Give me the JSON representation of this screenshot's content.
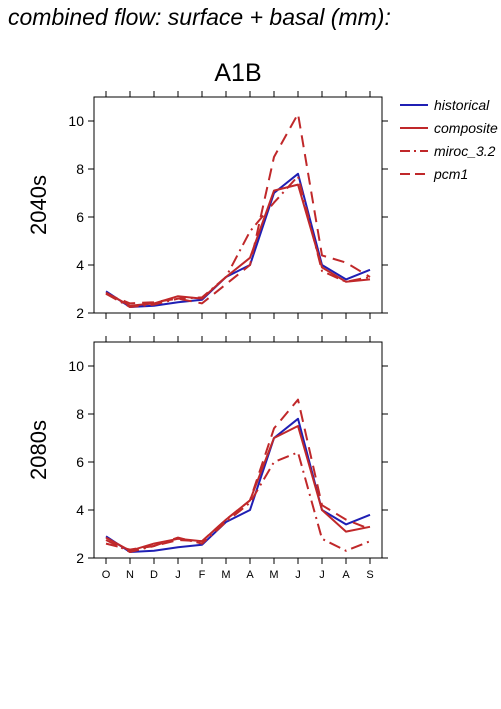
{
  "page": {
    "title": "combined flow: surface + basal (mm):"
  },
  "legend": [
    {
      "label": "historical",
      "color": "#1f1fb4",
      "dash": "solid"
    },
    {
      "label": "composite",
      "color": "#c0282a",
      "dash": "solid"
    },
    {
      "label": "miroc_3.2",
      "color": "#c0282a",
      "dash": "dashdot"
    },
    {
      "label": "pcm1",
      "color": "#c0282a",
      "dash": "dashed"
    }
  ],
  "chart_data": [
    {
      "type": "line",
      "title": "A1B",
      "ylabel": "2040s",
      "categories": [
        "O",
        "N",
        "D",
        "J",
        "F",
        "M",
        "A",
        "M",
        "J",
        "J",
        "A",
        "S"
      ],
      "ylim": [
        2,
        11
      ],
      "yticks": [
        2,
        4,
        6,
        8,
        10
      ],
      "series": [
        {
          "name": "historical",
          "values": [
            2.9,
            2.25,
            2.3,
            2.45,
            2.55,
            3.5,
            4.0,
            7.0,
            7.8,
            4.0,
            3.4,
            3.8
          ]
        },
        {
          "name": "composite",
          "values": [
            2.85,
            2.3,
            2.4,
            2.7,
            2.6,
            3.5,
            4.3,
            7.1,
            7.35,
            3.9,
            3.3,
            3.4
          ]
        },
        {
          "name": "miroc_3.2",
          "values": [
            2.8,
            2.25,
            2.35,
            2.6,
            2.65,
            3.5,
            5.4,
            6.6,
            7.7,
            3.75,
            3.3,
            3.5
          ]
        },
        {
          "name": "pcm1",
          "values": [
            2.8,
            2.4,
            2.45,
            2.6,
            2.4,
            3.2,
            4.0,
            8.5,
            10.3,
            4.4,
            4.1,
            3.5
          ]
        }
      ]
    },
    {
      "type": "line",
      "title": "",
      "ylabel": "2080s",
      "categories": [
        "O",
        "N",
        "D",
        "J",
        "F",
        "M",
        "A",
        "M",
        "J",
        "J",
        "A",
        "S"
      ],
      "ylim": [
        2,
        11
      ],
      "yticks": [
        2,
        4,
        6,
        8,
        10
      ],
      "series": [
        {
          "name": "historical",
          "values": [
            2.9,
            2.25,
            2.3,
            2.45,
            2.55,
            3.5,
            4.0,
            7.0,
            7.8,
            4.0,
            3.4,
            3.8
          ]
        },
        {
          "name": "composite",
          "values": [
            2.85,
            2.3,
            2.6,
            2.8,
            2.7,
            3.6,
            4.4,
            7.0,
            7.5,
            4.0,
            3.1,
            3.3
          ]
        },
        {
          "name": "miroc_3.2",
          "values": [
            2.75,
            2.25,
            2.5,
            2.85,
            2.6,
            3.5,
            4.3,
            6.0,
            6.4,
            2.8,
            2.3,
            2.7
          ]
        },
        {
          "name": "pcm1",
          "values": [
            2.6,
            2.35,
            2.5,
            2.75,
            2.7,
            3.6,
            4.4,
            7.4,
            8.6,
            4.2,
            3.6,
            3.2
          ]
        }
      ]
    }
  ]
}
